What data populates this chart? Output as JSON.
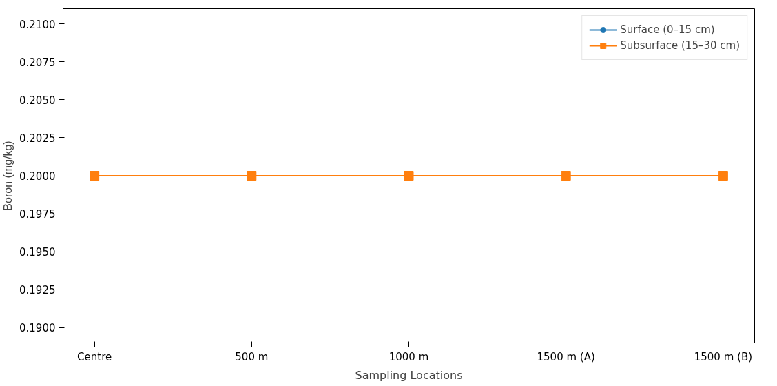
{
  "chart_data": {
    "type": "line",
    "xlabel": "Sampling Locations",
    "ylabel": "Boron (mg/kg)",
    "categories": [
      "Centre",
      "500 m",
      "1000 m",
      "1500 m (A)",
      "1500 m (B)"
    ],
    "series": [
      {
        "name": "Surface (0–15 cm)",
        "color": "#1f77b4",
        "marker": "circle",
        "values": [
          null,
          null,
          null,
          null,
          null
        ]
      },
      {
        "name": "Subsurface (15–30 cm)",
        "color": "#ff7f0e",
        "marker": "square",
        "values": [
          0.2,
          0.2,
          0.2,
          0.2,
          0.2
        ]
      }
    ],
    "ylim": [
      0.189,
      0.211
    ],
    "yticks": [
      {
        "value": 0.19,
        "label": "0.1900"
      },
      {
        "value": 0.1925,
        "label": "0.1925"
      },
      {
        "value": 0.195,
        "label": "0.1950"
      },
      {
        "value": 0.1975,
        "label": "0.1975"
      },
      {
        "value": 0.2,
        "label": "0.2000"
      },
      {
        "value": 0.2025,
        "label": "0.2025"
      },
      {
        "value": 0.205,
        "label": "0.2050"
      },
      {
        "value": 0.2075,
        "label": "0.2075"
      },
      {
        "value": 0.21,
        "label": "0.2100"
      }
    ],
    "grid": false,
    "legend": "top right"
  }
}
